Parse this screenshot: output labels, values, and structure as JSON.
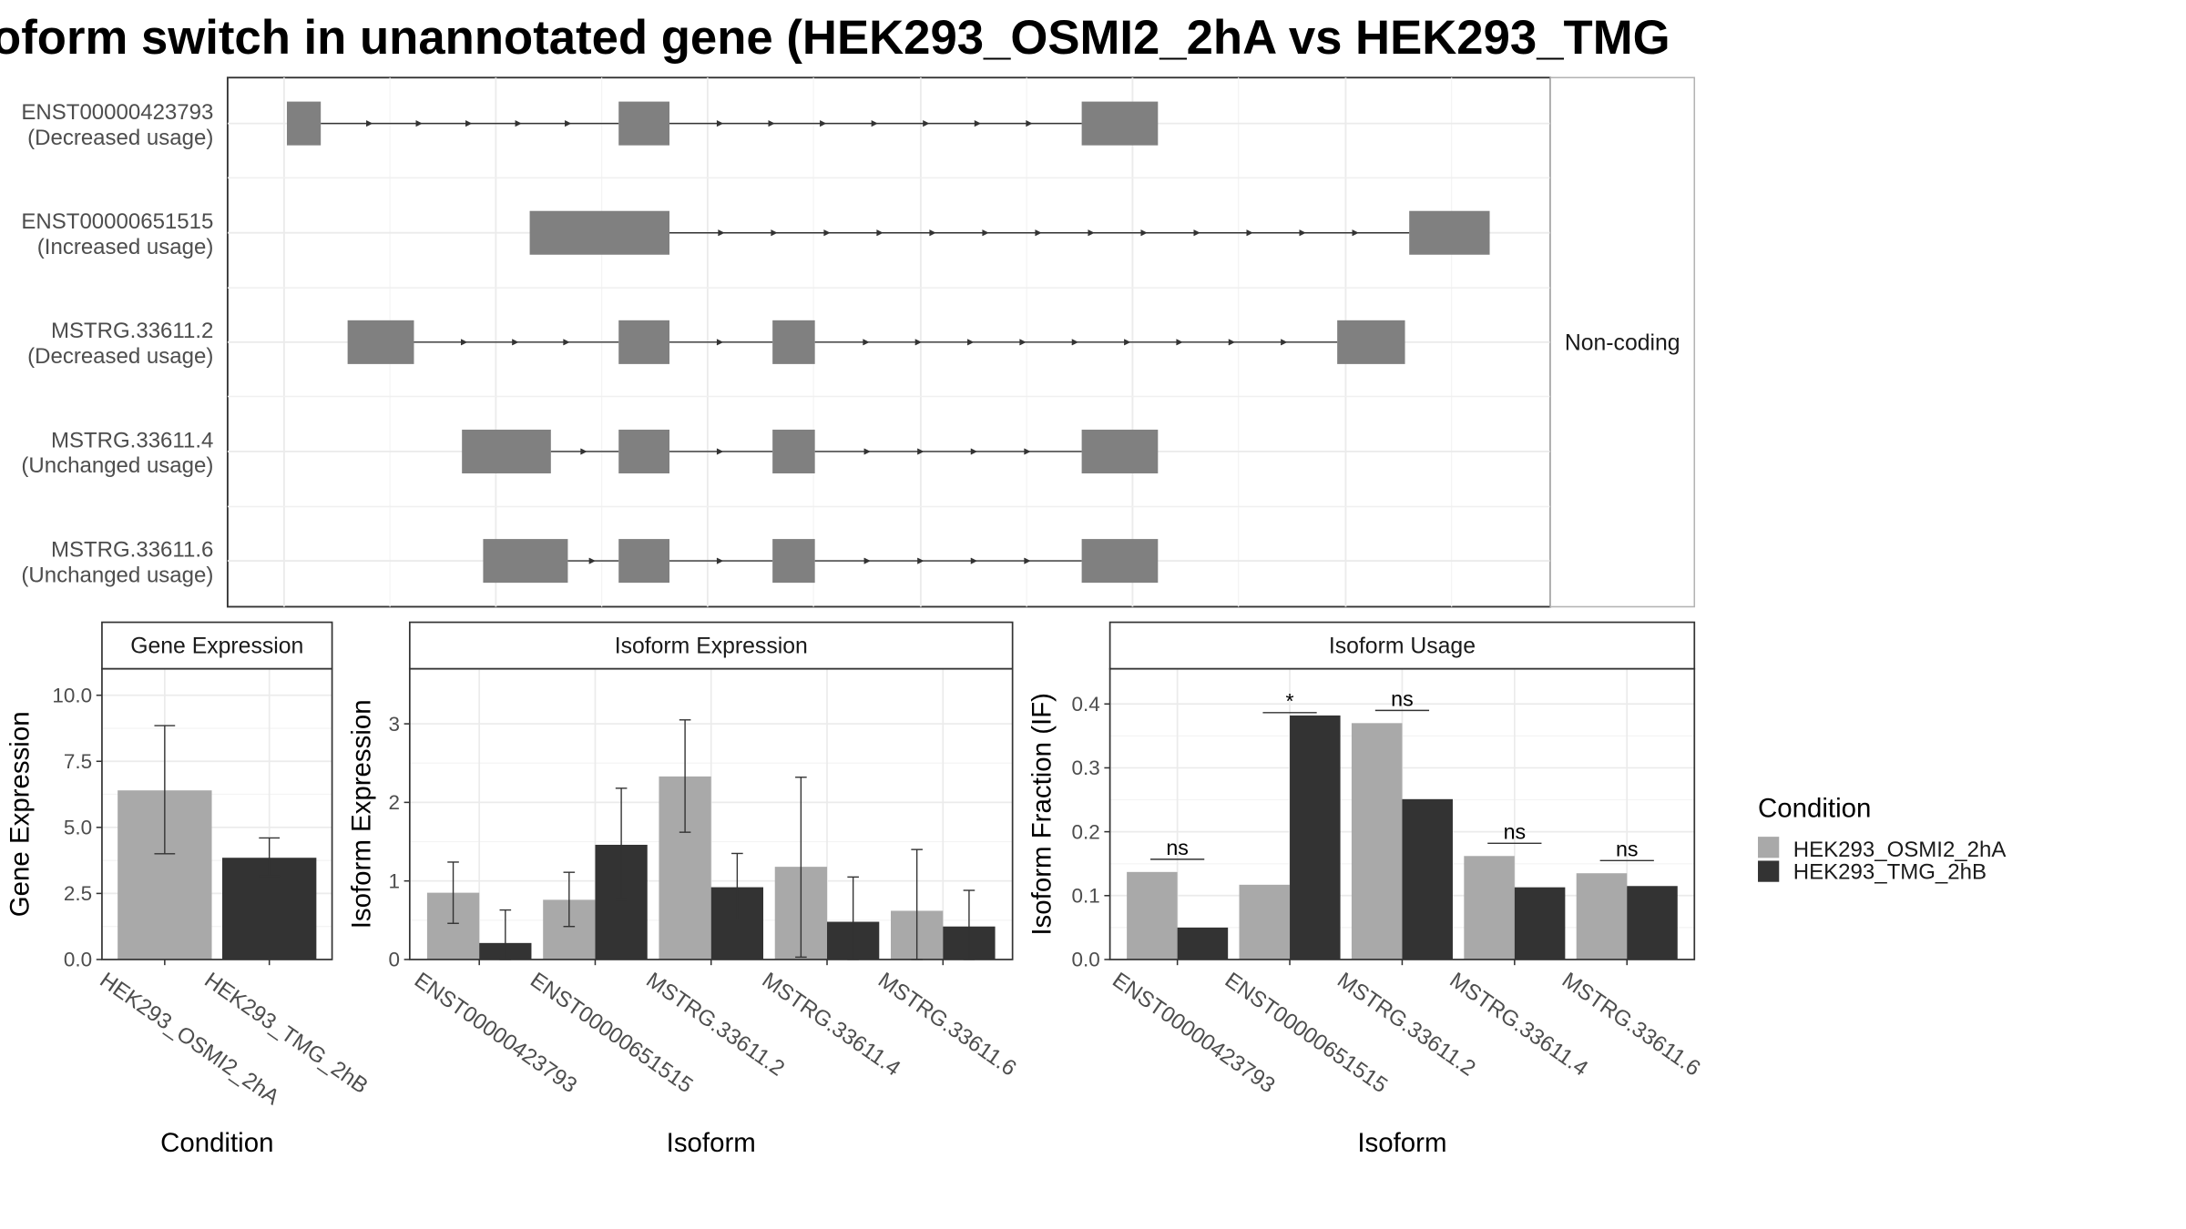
{
  "title": "oform switch in unannotated gene (HEK293_OSMI2_2hA vs HEK293_TMG",
  "colors": {
    "cond_a": "#a9a9a9",
    "cond_b": "#333333",
    "exon": "#808080"
  },
  "chart_data": [
    {
      "type": "gene-structure",
      "strip_label": "Non-coding",
      "transcripts": [
        {
          "name": "ENST00000423793",
          "usage": "(Decreased usage)",
          "exons": [
            [
              203,
              227
            ],
            [
              438,
              474
            ],
            [
              766,
              820
            ]
          ]
        },
        {
          "name": "ENST00000651515",
          "usage": "(Increased usage)",
          "exons": [
            [
              375,
              474
            ],
            [
              998,
              1055
            ]
          ]
        },
        {
          "name": "MSTRG.33611.2",
          "usage": "(Decreased usage)",
          "exons": [
            [
              246,
              293
            ],
            [
              438,
              474
            ],
            [
              547,
              577
            ],
            [
              947,
              995
            ]
          ]
        },
        {
          "name": "MSTRG.33611.4",
          "usage": "(Unchanged usage)",
          "exons": [
            [
              327,
              390
            ],
            [
              438,
              474
            ],
            [
              547,
              577
            ],
            [
              766,
              820
            ]
          ]
        },
        {
          "name": "MSTRG.33611.6",
          "usage": "(Unchanged usage)",
          "exons": [
            [
              342,
              402
            ],
            [
              438,
              474
            ],
            [
              547,
              577
            ],
            [
              766,
              820
            ]
          ]
        }
      ]
    },
    {
      "type": "bar",
      "title": "Gene Expression",
      "xlabel": "Condition",
      "ylabel": "Gene Expression",
      "ylim": [
        0,
        11
      ],
      "yticks": [
        "0.0",
        "2.5",
        "5.0",
        "7.5",
        "10.0"
      ],
      "categories": [
        "HEK293_OSMI2_2hA",
        "HEK293_TMG_2hB"
      ],
      "values": [
        6.4,
        3.85
      ],
      "errors": [
        [
          4.0,
          8.85
        ],
        [
          3.15,
          4.6
        ]
      ]
    },
    {
      "type": "bar",
      "title": "Isoform Expression",
      "xlabel": "Isoform",
      "ylabel": "Isoform Expression",
      "ylim": [
        0,
        3.7
      ],
      "yticks": [
        "0",
        "1",
        "2",
        "3"
      ],
      "categories": [
        "ENST00000423793",
        "ENST00000651515",
        "MSTRG.33611.2",
        "MSTRG.33611.4",
        "MSTRG.33611.6"
      ],
      "series": [
        {
          "name": "HEK293_OSMI2_2hA",
          "values": [
            0.85,
            0.76,
            2.33,
            1.18,
            0.62
          ],
          "errors": [
            [
              0.46,
              1.24
            ],
            [
              0.42,
              1.11
            ],
            [
              1.62,
              3.05
            ],
            [
              0.03,
              2.32
            ],
            [
              0.0,
              1.4
            ]
          ]
        },
        {
          "name": "HEK293_TMG_2hB",
          "values": [
            0.21,
            1.46,
            0.92,
            0.48,
            0.42
          ],
          "errors": [
            [
              0.0,
              0.63
            ],
            [
              0.76,
              2.18
            ],
            [
              0.51,
              1.35
            ],
            [
              0.0,
              1.05
            ],
            [
              0.0,
              0.88
            ]
          ]
        }
      ]
    },
    {
      "type": "bar",
      "title": "Isoform Usage",
      "xlabel": "Isoform",
      "ylabel": "Isoform Fraction (IF)",
      "ylim": [
        0,
        0.455
      ],
      "yticks": [
        "0.0",
        "0.1",
        "0.2",
        "0.3",
        "0.4"
      ],
      "categories": [
        "ENST00000423793",
        "ENST00000651515",
        "MSTRG.33611.2",
        "MSTRG.33611.4",
        "MSTRG.33611.6"
      ],
      "series": [
        {
          "name": "HEK293_OSMI2_2hA",
          "values": [
            0.137,
            0.117,
            0.37,
            0.162,
            0.135
          ]
        },
        {
          "name": "HEK293_TMG_2hB",
          "values": [
            0.05,
            0.382,
            0.251,
            0.113,
            0.115
          ]
        }
      ],
      "significance": [
        "ns",
        "*",
        "ns",
        "ns",
        "ns"
      ]
    }
  ],
  "legend": {
    "title": "Condition",
    "items": [
      "HEK293_OSMI2_2hA",
      "HEK293_TMG_2hB"
    ]
  }
}
